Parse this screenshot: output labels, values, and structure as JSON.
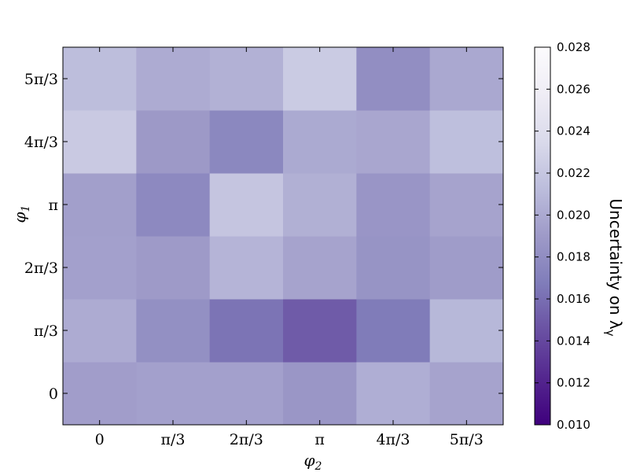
{
  "chart_data": {
    "type": "heatmap",
    "x_categories": [
      "0",
      "π/3",
      "2π/3",
      "π",
      "4π/3",
      "5π/3"
    ],
    "y_categories": [
      "0",
      "π/3",
      "2π/3",
      "π",
      "4π/3",
      "5π/3"
    ],
    "xlabel_symbol": "φ",
    "xlabel_sub": "2",
    "ylabel_symbol": "φ",
    "ylabel_sub": "1",
    "colorbar": {
      "label_text": "Uncertainty on λ",
      "label_sub": "γ",
      "range": [
        0.01,
        0.028
      ],
      "ticks": [
        "0.010",
        "0.012",
        "0.014",
        "0.016",
        "0.018",
        "0.020",
        "0.022",
        "0.024",
        "0.026",
        "0.028"
      ],
      "colormap": "Purples_r",
      "color_low": "#3f007d",
      "color_high": "#fcfbfd"
    },
    "values": [
      [
        0.0192,
        0.0194,
        0.0194,
        0.0187,
        0.0203,
        0.0196
      ],
      [
        0.0201,
        0.0182,
        0.0163,
        0.015,
        0.0167,
        0.0209
      ],
      [
        0.0194,
        0.019,
        0.0207,
        0.0196,
        0.0185,
        0.0191
      ],
      [
        0.0193,
        0.0177,
        0.0219,
        0.0204,
        0.0186,
        0.0196
      ],
      [
        0.0222,
        0.0189,
        0.0176,
        0.02,
        0.0198,
        0.0214
      ],
      [
        0.0213,
        0.0201,
        0.0205,
        0.0223,
        0.0181,
        0.0199
      ]
    ]
  }
}
